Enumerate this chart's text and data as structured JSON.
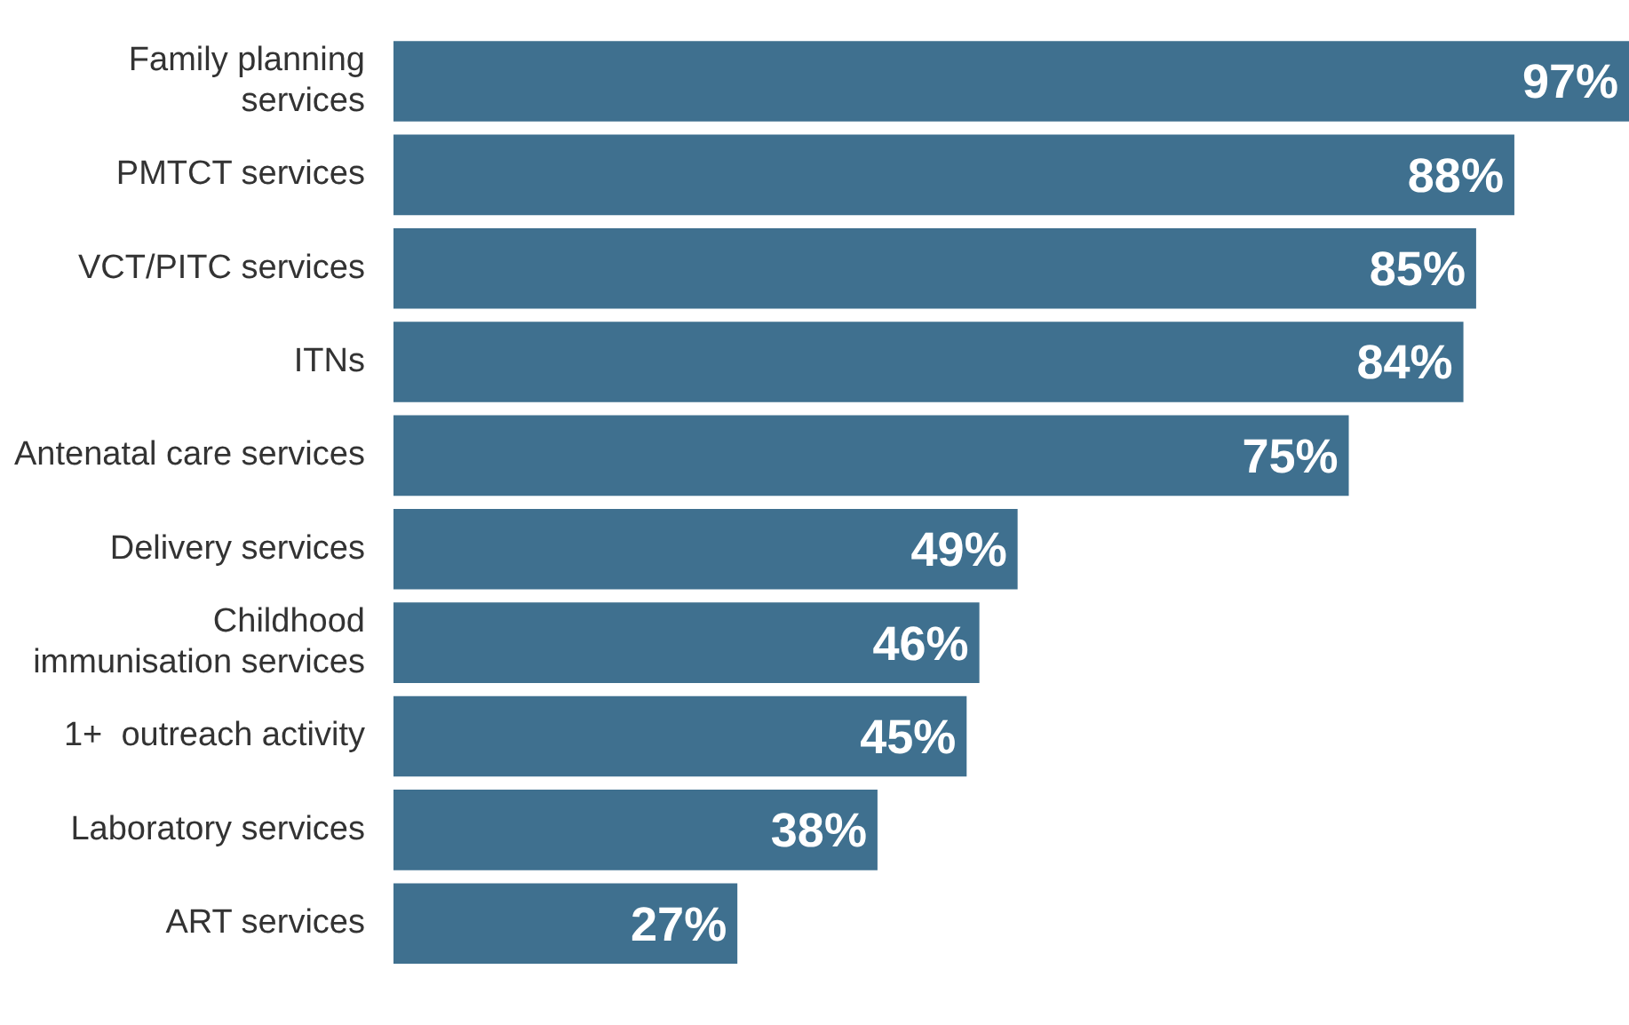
{
  "chart_data": {
    "type": "bar",
    "orientation": "horizontal",
    "categories": [
      "Family planning services",
      "PMTCT services",
      "VCT/PITC services",
      "ITNs",
      "Antenatal care services",
      "Delivery services",
      "Childhood immunisation services",
      "1+  outreach activity",
      "Laboratory services",
      "ART services"
    ],
    "values": [
      97,
      88,
      85,
      84,
      75,
      49,
      46,
      45,
      38,
      27
    ],
    "value_labels": [
      "97%",
      "88%",
      "85%",
      "84%",
      "75%",
      "49%",
      "46%",
      "45%",
      "38%",
      "27%"
    ],
    "color": "#3f708f",
    "legend": false
  }
}
